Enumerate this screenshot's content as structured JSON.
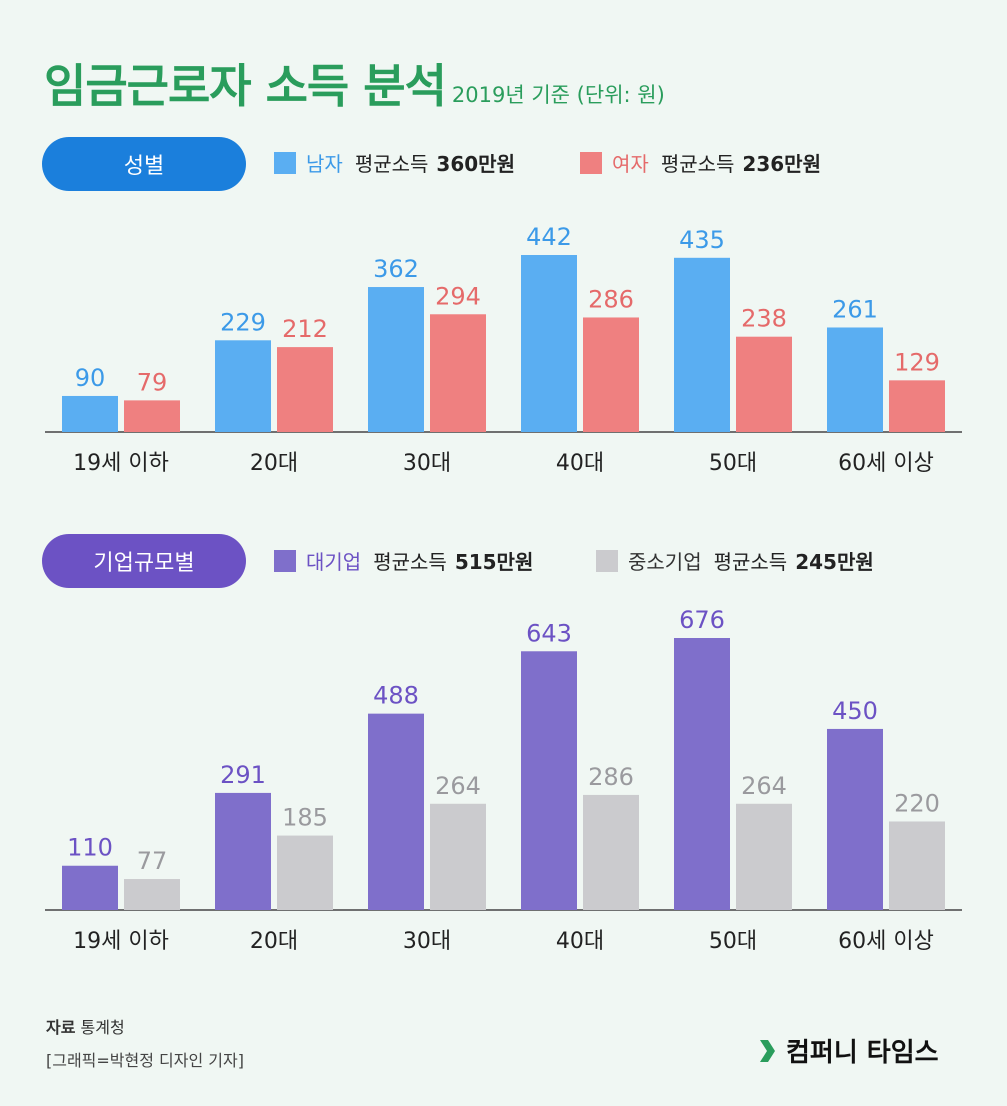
{
  "header": {
    "title": "임금근로자 소득 분석",
    "subtitle": "2019년 기준  (단위: 원)"
  },
  "colors": {
    "title": "#2a9d5c",
    "male": "#5aaef2",
    "female": "#ef8080",
    "large": "#7f6fcb",
    "small": "#cbcbce",
    "pill_gender": "#1b7fdc",
    "pill_company": "#6c52c4"
  },
  "gender_section": {
    "pill": "성별",
    "legend": [
      {
        "name": "남자",
        "label": "평균소득",
        "value": "360만원"
      },
      {
        "name": "여자",
        "label": "평균소득",
        "value": "236만원"
      }
    ]
  },
  "company_section": {
    "pill": "기업규모별",
    "legend": [
      {
        "name": "대기업",
        "label": "평균소득",
        "value": "515만원"
      },
      {
        "name": "중소기업",
        "label": "평균소득",
        "value": "245만원"
      }
    ]
  },
  "chart_data": [
    {
      "type": "bar",
      "title": "성별",
      "categories": [
        "19세 이하",
        "20대",
        "30대",
        "40대",
        "50대",
        "60세 이상"
      ],
      "series": [
        {
          "name": "남자",
          "values": [
            90,
            229,
            362,
            442,
            435,
            261
          ]
        },
        {
          "name": "여자",
          "values": [
            79,
            212,
            294,
            286,
            238,
            129
          ]
        }
      ],
      "ylim": [
        0,
        442
      ]
    },
    {
      "type": "bar",
      "title": "기업규모별",
      "categories": [
        "19세 이하",
        "20대",
        "30대",
        "40대",
        "50대",
        "60세 이상"
      ],
      "series": [
        {
          "name": "대기업",
          "values": [
            110,
            291,
            488,
            643,
            676,
            450
          ]
        },
        {
          "name": "중소기업",
          "values": [
            77,
            185,
            264,
            286,
            264,
            220
          ]
        }
      ],
      "ylim": [
        0,
        676
      ]
    }
  ],
  "footer": {
    "source_label": "자료",
    "source_value": "통계청",
    "credit": "[그래픽=박현정 디자인 기자]",
    "logo": "컴퍼니 타임스"
  }
}
